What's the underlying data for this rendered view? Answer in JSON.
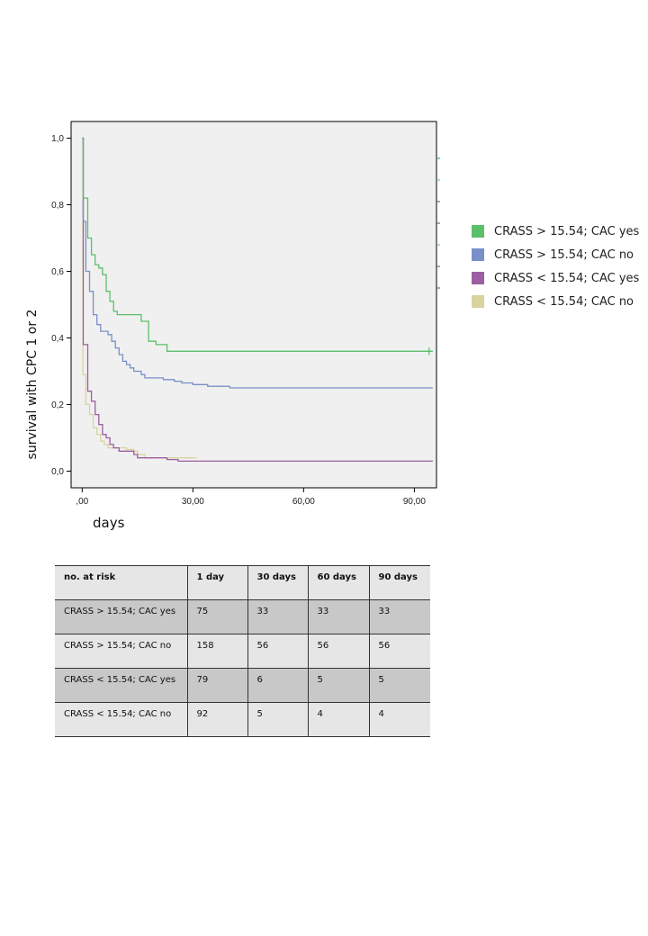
{
  "chart_data": {
    "type": "line",
    "subtype": "kaplan-meier step",
    "title": "",
    "xlabel": "days",
    "ylabel": "survival with CPC 1 or 2",
    "xlim": [
      -3,
      96
    ],
    "ylim": [
      -0.05,
      1.05
    ],
    "x_ticks": [
      0,
      30,
      60,
      90
    ],
    "x_tick_labels": [
      ",00",
      "30,00",
      "60,00",
      "90,00"
    ],
    "y_ticks": [
      0,
      0.2,
      0.4,
      0.6,
      0.8,
      1.0
    ],
    "y_tick_labels": [
      "0,0",
      "0,2",
      "0,4",
      "0,6",
      "0,8",
      "1,0"
    ],
    "grid": false,
    "legend_position": "right",
    "series": [
      {
        "name": "CRASS > 15.54; CAC yes",
        "color": "#5cbf6a",
        "points": [
          [
            0,
            1.0
          ],
          [
            0.3,
            0.82
          ],
          [
            1.5,
            0.7
          ],
          [
            2.5,
            0.65
          ],
          [
            3.5,
            0.62
          ],
          [
            4.5,
            0.61
          ],
          [
            5.5,
            0.59
          ],
          [
            6.5,
            0.54
          ],
          [
            7.5,
            0.51
          ],
          [
            8.5,
            0.48
          ],
          [
            9.5,
            0.47
          ],
          [
            16,
            0.45
          ],
          [
            18,
            0.39
          ],
          [
            20,
            0.38
          ],
          [
            23,
            0.36
          ],
          [
            95,
            0.36
          ]
        ],
        "censor_x": [
          94
        ]
      },
      {
        "name": "CRASS > 15.54; CAC no",
        "color": "#7a8fc9",
        "points": [
          [
            0,
            1.0
          ],
          [
            0.3,
            0.75
          ],
          [
            1.0,
            0.6
          ],
          [
            2.0,
            0.54
          ],
          [
            3.0,
            0.47
          ],
          [
            4.0,
            0.44
          ],
          [
            5.0,
            0.42
          ],
          [
            7.0,
            0.41
          ],
          [
            8.0,
            0.39
          ],
          [
            9.0,
            0.37
          ],
          [
            10.0,
            0.35
          ],
          [
            11.0,
            0.33
          ],
          [
            12.0,
            0.32
          ],
          [
            13.0,
            0.31
          ],
          [
            14.0,
            0.3
          ],
          [
            16.0,
            0.29
          ],
          [
            17.0,
            0.28
          ],
          [
            22.0,
            0.275
          ],
          [
            25.0,
            0.27
          ],
          [
            27.0,
            0.265
          ],
          [
            30.0,
            0.26
          ],
          [
            34.0,
            0.255
          ],
          [
            40.0,
            0.25
          ],
          [
            95,
            0.25
          ]
        ],
        "censor_x": []
      },
      {
        "name": "CRASS < 15.54; CAC yes",
        "color": "#9b5fa1",
        "points": [
          [
            0,
            1.0
          ],
          [
            0.3,
            0.38
          ],
          [
            1.5,
            0.24
          ],
          [
            2.5,
            0.21
          ],
          [
            3.5,
            0.17
          ],
          [
            4.5,
            0.14
          ],
          [
            5.5,
            0.11
          ],
          [
            6.5,
            0.1
          ],
          [
            7.5,
            0.08
          ],
          [
            8.5,
            0.07
          ],
          [
            10,
            0.06
          ],
          [
            14,
            0.05
          ],
          [
            15,
            0.04
          ],
          [
            23,
            0.035
          ],
          [
            26,
            0.03
          ],
          [
            95,
            0.03
          ]
        ],
        "censor_x": []
      },
      {
        "name": "CRASS < 15.54; CAC no",
        "color": "#d9d3a0",
        "points": [
          [
            0,
            1.0
          ],
          [
            0.2,
            0.29
          ],
          [
            1.0,
            0.2
          ],
          [
            2.0,
            0.17
          ],
          [
            3.0,
            0.13
          ],
          [
            4.0,
            0.11
          ],
          [
            5.0,
            0.09
          ],
          [
            6.0,
            0.08
          ],
          [
            7.0,
            0.07
          ],
          [
            10.0,
            0.07
          ],
          [
            12.0,
            0.065
          ],
          [
            14.0,
            0.06
          ],
          [
            15.0,
            0.05
          ],
          [
            17.0,
            0.04
          ],
          [
            24.0,
            0.04
          ],
          [
            31,
            0.04
          ]
        ],
        "censor_x": []
      }
    ]
  },
  "risk_table": {
    "headers": [
      "no. at risk",
      "1 day",
      "30 days",
      "60 days",
      "90 days"
    ],
    "rows": [
      [
        "CRASS > 15.54; CAC yes",
        "75",
        "33",
        "33",
        "33"
      ],
      [
        "CRASS > 15.54; CAC no",
        "158",
        "56",
        "56",
        "56"
      ],
      [
        "CRASS < 15.54; CAC yes",
        "79",
        "6",
        "5",
        "5"
      ],
      [
        "CRASS < 15.54; CAC no",
        "92",
        "5",
        "4",
        "4"
      ]
    ]
  }
}
